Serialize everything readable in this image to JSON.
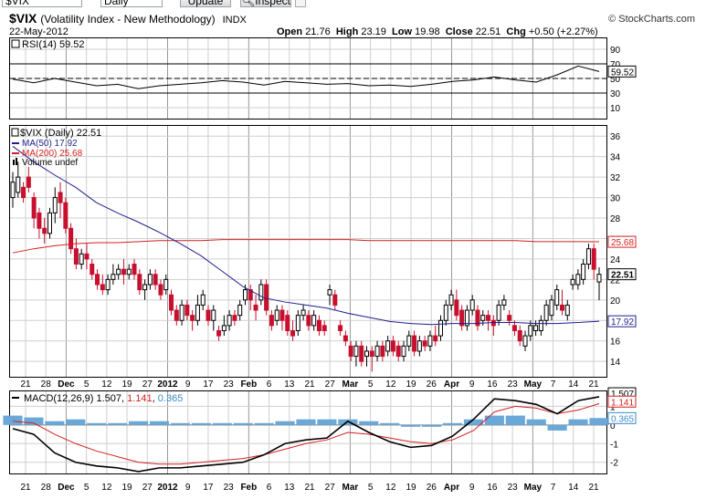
{
  "toolbar": {
    "symbol_value": "$VIX",
    "period_value": "Daily",
    "update_label": "Update",
    "inspect_label": "Inspect"
  },
  "header": {
    "symbol": "$VIX",
    "description": "(Volatility Index - New Methodology)",
    "exchange": "INDX",
    "brand": "© StockCharts.com",
    "date": "22-May-2012",
    "ohlc": {
      "open": "21.76",
      "high": "23.19",
      "low": "19.98",
      "close": "22.51",
      "chg": "+0.50 (+2.27%)"
    }
  },
  "legends": {
    "rsi": "RSI(14) 59.52",
    "price": "$VIX (Daily) 22.51",
    "ma50": "MA(50) 17.92",
    "ma200": "MA(200) 25.68",
    "volume": "Volume undef",
    "macd_name": "MACD(12,26,9)",
    "macd_value": "1.507",
    "macd_signal": "1.141",
    "macd_hist": "0.365"
  },
  "colors": {
    "up": "#000000",
    "down": "#c8102e",
    "ma50": "#1f1f8f",
    "ma200": "#d42020",
    "hist": "#6aa8d8",
    "grid": "#cfcfcf",
    "month_grid": "#9a9a9a"
  },
  "chart_data": [
    {
      "type": "line",
      "title": "RSI(14)",
      "x": [
        "21",
        "28",
        "Dec",
        "5",
        "12",
        "19",
        "27",
        "2012",
        "9",
        "17",
        "23",
        "Feb",
        "6",
        "13",
        "21",
        "27",
        "Mar",
        "5",
        "12",
        "19",
        "26",
        "Apr",
        "9",
        "16",
        "23",
        "May",
        "7",
        "14",
        "21"
      ],
      "values": [
        49,
        44,
        50,
        45,
        40,
        42,
        36,
        40,
        42,
        44,
        47,
        45,
        41,
        46,
        44,
        42,
        43,
        40,
        41,
        39,
        42,
        46,
        48,
        52,
        48,
        45,
        55,
        67,
        59.52
      ],
      "ylim": [
        0,
        100
      ],
      "yticks": [
        10,
        30,
        50,
        70,
        90
      ],
      "reference_lines": [
        30,
        70
      ],
      "last_value": "59.52"
    },
    {
      "type": "candlestick",
      "title": "$VIX (Daily)",
      "ylim": [
        12.5,
        37
      ],
      "yticks": [
        14,
        16,
        18,
        20,
        22,
        24,
        26,
        28,
        30,
        32,
        34,
        36
      ],
      "bars": [
        {
          "o": 30.0,
          "c": 31.5,
          "h": 32.5,
          "l": 29.0
        },
        {
          "o": 30.5,
          "c": 32.0,
          "h": 33.5,
          "l": 30.0
        },
        {
          "o": 31.0,
          "c": 30.0,
          "h": 31.5,
          "l": 29.5
        },
        {
          "o": 32.0,
          "c": 31.0,
          "h": 33.0,
          "l": 30.5
        },
        {
          "o": 30.0,
          "c": 28.0,
          "h": 30.5,
          "l": 27.0
        },
        {
          "o": 28.5,
          "c": 27.0,
          "h": 29.0,
          "l": 26.0
        },
        {
          "o": 27.0,
          "c": 26.5,
          "h": 28.0,
          "l": 25.5
        },
        {
          "o": 26.5,
          "c": 28.5,
          "h": 29.0,
          "l": 26.0
        },
        {
          "o": 28.5,
          "c": 30.0,
          "h": 31.0,
          "l": 27.5
        },
        {
          "o": 30.5,
          "c": 29.5,
          "h": 31.5,
          "l": 28.0
        },
        {
          "o": 29.5,
          "c": 27.0,
          "h": 30.0,
          "l": 26.5
        },
        {
          "o": 27.0,
          "c": 25.0,
          "h": 27.5,
          "l": 24.5
        },
        {
          "o": 25.0,
          "c": 23.5,
          "h": 26.0,
          "l": 23.0
        },
        {
          "o": 23.5,
          "c": 24.5,
          "h": 25.0,
          "l": 23.0
        },
        {
          "o": 24.5,
          "c": 24.0,
          "h": 25.5,
          "l": 23.0
        },
        {
          "o": 23.5,
          "c": 22.5,
          "h": 24.0,
          "l": 22.0
        },
        {
          "o": 22.5,
          "c": 21.5,
          "h": 23.0,
          "l": 21.0
        },
        {
          "o": 21.5,
          "c": 21.0,
          "h": 22.5,
          "l": 20.5
        },
        {
          "o": 21.0,
          "c": 22.0,
          "h": 22.5,
          "l": 20.5
        },
        {
          "o": 22.0,
          "c": 22.5,
          "h": 23.5,
          "l": 21.5
        },
        {
          "o": 22.5,
          "c": 23.0,
          "h": 23.5,
          "l": 22.0
        },
        {
          "o": 23.0,
          "c": 22.5,
          "h": 24.0,
          "l": 21.5
        },
        {
          "o": 22.5,
          "c": 23.0,
          "h": 23.5,
          "l": 22.0
        },
        {
          "o": 23.5,
          "c": 22.5,
          "h": 24.0,
          "l": 22.0
        },
        {
          "o": 22.5,
          "c": 21.0,
          "h": 23.0,
          "l": 20.5
        },
        {
          "o": 21.0,
          "c": 21.5,
          "h": 22.0,
          "l": 20.0
        },
        {
          "o": 21.5,
          "c": 22.5,
          "h": 23.0,
          "l": 21.0
        },
        {
          "o": 22.5,
          "c": 21.5,
          "h": 23.0,
          "l": 21.0
        },
        {
          "o": 21.5,
          "c": 20.5,
          "h": 22.0,
          "l": 20.0
        },
        {
          "o": 21.0,
          "c": 22.0,
          "h": 22.5,
          "l": 20.5
        },
        {
          "o": 20.5,
          "c": 19.0,
          "h": 21.0,
          "l": 18.5
        },
        {
          "o": 19.0,
          "c": 18.0,
          "h": 19.5,
          "l": 17.5
        },
        {
          "o": 18.0,
          "c": 19.5,
          "h": 20.0,
          "l": 17.5
        },
        {
          "o": 19.5,
          "c": 18.5,
          "h": 20.0,
          "l": 18.0
        },
        {
          "o": 18.5,
          "c": 18.0,
          "h": 19.0,
          "l": 17.0
        },
        {
          "o": 18.0,
          "c": 19.5,
          "h": 20.5,
          "l": 17.5
        },
        {
          "o": 19.5,
          "c": 20.5,
          "h": 21.0,
          "l": 19.0
        },
        {
          "o": 19.0,
          "c": 18.0,
          "h": 19.5,
          "l": 17.5
        },
        {
          "o": 18.0,
          "c": 19.0,
          "h": 19.5,
          "l": 17.0
        },
        {
          "o": 17.0,
          "c": 16.5,
          "h": 17.5,
          "l": 16.0
        },
        {
          "o": 17.0,
          "c": 17.5,
          "h": 18.5,
          "l": 16.5
        },
        {
          "o": 17.5,
          "c": 18.5,
          "h": 19.0,
          "l": 17.0
        },
        {
          "o": 18.5,
          "c": 18.0,
          "h": 19.0,
          "l": 17.5
        },
        {
          "o": 18.5,
          "c": 19.5,
          "h": 20.0,
          "l": 18.0
        },
        {
          "o": 20.0,
          "c": 21.0,
          "h": 21.5,
          "l": 19.5
        },
        {
          "o": 21.0,
          "c": 20.0,
          "h": 21.5,
          "l": 19.0
        },
        {
          "o": 19.5,
          "c": 19.0,
          "h": 20.5,
          "l": 18.0
        },
        {
          "o": 20.0,
          "c": 21.5,
          "h": 22.0,
          "l": 19.5
        },
        {
          "o": 21.5,
          "c": 19.0,
          "h": 22.0,
          "l": 18.5
        },
        {
          "o": 18.5,
          "c": 17.5,
          "h": 19.0,
          "l": 17.0
        },
        {
          "o": 18.0,
          "c": 19.0,
          "h": 19.5,
          "l": 17.5
        },
        {
          "o": 19.0,
          "c": 18.0,
          "h": 19.5,
          "l": 17.0
        },
        {
          "o": 18.5,
          "c": 17.0,
          "h": 19.0,
          "l": 16.5
        },
        {
          "o": 17.0,
          "c": 16.5,
          "h": 18.0,
          "l": 16.0
        },
        {
          "o": 17.0,
          "c": 18.5,
          "h": 19.0,
          "l": 16.5
        },
        {
          "o": 18.5,
          "c": 19.0,
          "h": 19.5,
          "l": 18.0
        },
        {
          "o": 18.5,
          "c": 17.5,
          "h": 19.0,
          "l": 17.0
        },
        {
          "o": 17.5,
          "c": 18.5,
          "h": 19.0,
          "l": 17.0
        },
        {
          "o": 18.0,
          "c": 17.0,
          "h": 18.5,
          "l": 16.5
        },
        {
          "o": 17.5,
          "c": 17.0,
          "h": 18.0,
          "l": 16.5
        },
        {
          "o": 20.5,
          "c": 21.0,
          "h": 21.5,
          "l": 19.5
        },
        {
          "o": 20.5,
          "c": 19.5,
          "h": 21.0,
          "l": 19.0
        },
        {
          "o": 17.5,
          "c": 17.0,
          "h": 18.0,
          "l": 16.5
        },
        {
          "o": 16.5,
          "c": 16.0,
          "h": 17.0,
          "l": 15.5
        },
        {
          "o": 15.5,
          "c": 14.5,
          "h": 16.0,
          "l": 14.0
        },
        {
          "o": 14.5,
          "c": 15.5,
          "h": 16.0,
          "l": 13.5
        },
        {
          "o": 15.5,
          "c": 14.0,
          "h": 16.0,
          "l": 13.5
        },
        {
          "o": 14.5,
          "c": 15.0,
          "h": 15.5,
          "l": 13.5
        },
        {
          "o": 15.0,
          "c": 14.5,
          "h": 15.5,
          "l": 13.0
        },
        {
          "o": 14.5,
          "c": 15.5,
          "h": 16.0,
          "l": 14.0
        },
        {
          "o": 15.5,
          "c": 14.5,
          "h": 16.0,
          "l": 14.0
        },
        {
          "o": 15.0,
          "c": 16.0,
          "h": 16.5,
          "l": 14.5
        },
        {
          "o": 16.0,
          "c": 15.0,
          "h": 16.5,
          "l": 14.5
        },
        {
          "o": 15.5,
          "c": 14.5,
          "h": 16.0,
          "l": 14.0
        },
        {
          "o": 14.5,
          "c": 15.5,
          "h": 16.0,
          "l": 14.0
        },
        {
          "o": 15.5,
          "c": 16.5,
          "h": 17.0,
          "l": 15.0
        },
        {
          "o": 16.5,
          "c": 15.0,
          "h": 17.0,
          "l": 14.5
        },
        {
          "o": 15.0,
          "c": 16.0,
          "h": 16.5,
          "l": 14.5
        },
        {
          "o": 16.0,
          "c": 15.5,
          "h": 16.5,
          "l": 15.0
        },
        {
          "o": 15.5,
          "c": 16.5,
          "h": 17.0,
          "l": 15.0
        },
        {
          "o": 16.5,
          "c": 16.0,
          "h": 17.5,
          "l": 15.5
        },
        {
          "o": 16.5,
          "c": 18.0,
          "h": 18.5,
          "l": 16.0
        },
        {
          "o": 18.0,
          "c": 19.5,
          "h": 20.0,
          "l": 17.5
        },
        {
          "o": 19.5,
          "c": 20.5,
          "h": 21.0,
          "l": 19.0
        },
        {
          "o": 20.0,
          "c": 18.5,
          "h": 21.0,
          "l": 18.0
        },
        {
          "o": 19.0,
          "c": 17.5,
          "h": 19.5,
          "l": 17.0
        },
        {
          "o": 17.5,
          "c": 19.0,
          "h": 19.5,
          "l": 17.0
        },
        {
          "o": 19.0,
          "c": 20.0,
          "h": 20.5,
          "l": 18.5
        },
        {
          "o": 19.0,
          "c": 17.5,
          "h": 19.5,
          "l": 17.0
        },
        {
          "o": 18.0,
          "c": 18.5,
          "h": 19.0,
          "l": 17.5
        },
        {
          "o": 18.5,
          "c": 18.0,
          "h": 19.0,
          "l": 17.0
        },
        {
          "o": 18.0,
          "c": 17.5,
          "h": 18.5,
          "l": 16.5
        },
        {
          "o": 18.0,
          "c": 19.5,
          "h": 20.0,
          "l": 17.5
        },
        {
          "o": 19.5,
          "c": 20.0,
          "h": 20.5,
          "l": 19.0
        },
        {
          "o": 18.5,
          "c": 18.0,
          "h": 19.0,
          "l": 17.5
        },
        {
          "o": 17.5,
          "c": 17.0,
          "h": 18.0,
          "l": 16.5
        },
        {
          "o": 17.0,
          "c": 16.0,
          "h": 17.5,
          "l": 15.5
        },
        {
          "o": 15.5,
          "c": 16.5,
          "h": 17.0,
          "l": 15.0
        },
        {
          "o": 16.5,
          "c": 17.5,
          "h": 18.0,
          "l": 16.0
        },
        {
          "o": 17.0,
          "c": 17.5,
          "h": 18.0,
          "l": 16.5
        },
        {
          "o": 17.0,
          "c": 18.0,
          "h": 18.5,
          "l": 16.5
        },
        {
          "o": 18.0,
          "c": 19.5,
          "h": 20.0,
          "l": 17.5
        },
        {
          "o": 18.5,
          "c": 20.0,
          "h": 20.5,
          "l": 18.0
        },
        {
          "o": 19.5,
          "c": 21.0,
          "h": 21.5,
          "l": 19.0
        },
        {
          "o": 19.5,
          "c": 19.0,
          "h": 21.0,
          "l": 18.5
        },
        {
          "o": 18.5,
          "c": 19.5,
          "h": 20.0,
          "l": 18.0
        },
        {
          "o": 21.5,
          "c": 22.0,
          "h": 22.5,
          "l": 21.0
        },
        {
          "o": 21.5,
          "c": 22.5,
          "h": 23.0,
          "l": 21.0
        },
        {
          "o": 22.0,
          "c": 23.5,
          "h": 24.0,
          "l": 21.5
        },
        {
          "o": 23.5,
          "c": 25.0,
          "h": 25.5,
          "l": 23.0
        },
        {
          "o": 25.0,
          "c": 23.0,
          "h": 25.5,
          "l": 22.0
        },
        {
          "o": 21.76,
          "c": 22.51,
          "h": 23.19,
          "l": 19.98
        }
      ],
      "ma50_values": [
        35,
        33.5,
        32.2,
        31,
        29.5,
        28.5,
        27.6,
        26.6,
        25.5,
        24.3,
        22.8,
        21.3,
        20.2,
        19.8,
        19.5,
        19.2,
        18.7,
        18.3,
        17.9,
        17.7,
        17.6,
        17.7,
        17.7,
        17.8,
        17.8,
        17.7,
        17.7,
        17.8,
        17.92
      ],
      "ma200_values": [
        24.6,
        25,
        25.3,
        25.5,
        25.6,
        25.6,
        25.7,
        25.8,
        25.8,
        25.8,
        25.9,
        25.9,
        25.9,
        25.9,
        25.9,
        25.9,
        25.9,
        25.8,
        25.8,
        25.8,
        25.8,
        25.8,
        25.8,
        25.8,
        25.8,
        25.7,
        25.7,
        25.7,
        25.68
      ],
      "last_value": "22.51",
      "ma50_label": "17.92",
      "ma200_label": "25.68"
    },
    {
      "type": "line",
      "title": "MACD(12,26,9)",
      "macd_values": [
        -0.2,
        -0.5,
        -1.5,
        -2.0,
        -2.2,
        -2.3,
        -2.5,
        -2.3,
        -2.3,
        -2.2,
        -2.1,
        -2.0,
        -1.6,
        -1.0,
        -0.8,
        -0.7,
        0.2,
        -0.4,
        -0.9,
        -1.2,
        -1.1,
        -0.6,
        0.3,
        1.4,
        1.3,
        1.1,
        0.6,
        1.3,
        1.51
      ],
      "signal_values": [
        0.2,
        0.1,
        -0.5,
        -1.0,
        -1.4,
        -1.7,
        -2.0,
        -2.1,
        -2.1,
        -2.0,
        -1.9,
        -1.8,
        -1.6,
        -1.3,
        -1.0,
        -0.8,
        -0.4,
        -0.5,
        -0.7,
        -0.9,
        -1.0,
        -0.8,
        -0.3,
        0.7,
        1.0,
        0.9,
        0.6,
        0.8,
        1.14
      ],
      "histogram_values": [
        0.5,
        0.4,
        0.2,
        0.3,
        0.1,
        0.1,
        0.2,
        0.2,
        0.1,
        0.1,
        0.1,
        0.1,
        0.1,
        0.2,
        0.3,
        0.3,
        0.3,
        0.2,
        0.1,
        -0.1,
        -0.1,
        0.1,
        0.3,
        0.5,
        0.5,
        0.3,
        -0.3,
        0.3,
        0.37
      ],
      "ylim": [
        -2.6,
        1.8
      ],
      "yticks": [
        -2,
        -1,
        0,
        1
      ],
      "last_macd": "1.507",
      "last_signal": "1.141",
      "last_hist": "0.365"
    }
  ],
  "xaxis": {
    "labels": [
      {
        "text": "21",
        "bold": false
      },
      {
        "text": "28",
        "bold": false
      },
      {
        "text": "Dec",
        "bold": true
      },
      {
        "text": "5",
        "bold": false
      },
      {
        "text": "12",
        "bold": false
      },
      {
        "text": "19",
        "bold": false
      },
      {
        "text": "27",
        "bold": false
      },
      {
        "text": "2012",
        "bold": true
      },
      {
        "text": "9",
        "bold": false
      },
      {
        "text": "17",
        "bold": false
      },
      {
        "text": "23",
        "bold": false
      },
      {
        "text": "Feb",
        "bold": true
      },
      {
        "text": "6",
        "bold": false
      },
      {
        "text": "13",
        "bold": false
      },
      {
        "text": "21",
        "bold": false
      },
      {
        "text": "27",
        "bold": false
      },
      {
        "text": "Mar",
        "bold": true
      },
      {
        "text": "5",
        "bold": false
      },
      {
        "text": "12",
        "bold": false
      },
      {
        "text": "19",
        "bold": false
      },
      {
        "text": "26",
        "bold": false
      },
      {
        "text": "Apr",
        "bold": true
      },
      {
        "text": "9",
        "bold": false
      },
      {
        "text": "16",
        "bold": false
      },
      {
        "text": "23",
        "bold": false
      },
      {
        "text": "May",
        "bold": true
      },
      {
        "text": "7",
        "bold": false
      },
      {
        "text": "14",
        "bold": false
      },
      {
        "text": "21",
        "bold": false
      }
    ]
  }
}
